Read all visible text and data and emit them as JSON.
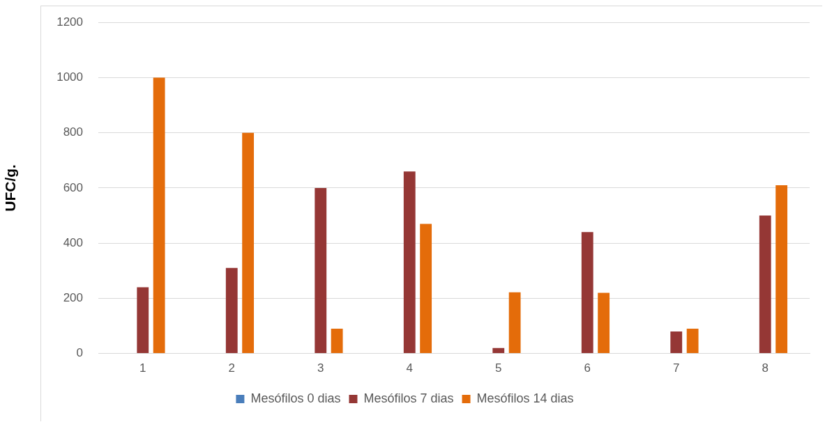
{
  "chart_data": {
    "type": "bar",
    "ylabel": "UFC/g.",
    "categories": [
      "1",
      "2",
      "3",
      "4",
      "5",
      "6",
      "7",
      "8"
    ],
    "series": [
      {
        "name": "Mesófilos 0 dias",
        "color": "#4a7ebb",
        "values": [
          0,
          0,
          0,
          0,
          0,
          0,
          0,
          0
        ]
      },
      {
        "name": "Mesófilos 7 dias",
        "color": "#953735",
        "values": [
          240,
          310,
          600,
          660,
          20,
          440,
          80,
          500
        ]
      },
      {
        "name": "Mesófilos 14 dias",
        "color": "#e46c0a",
        "values": [
          1000,
          800,
          90,
          470,
          222,
          220,
          90,
          610
        ]
      }
    ],
    "ylim": [
      0,
      1200
    ],
    "yticks": [
      0,
      200,
      400,
      600,
      800,
      1000,
      1200
    ],
    "grid": "y",
    "legend": "bottom"
  }
}
